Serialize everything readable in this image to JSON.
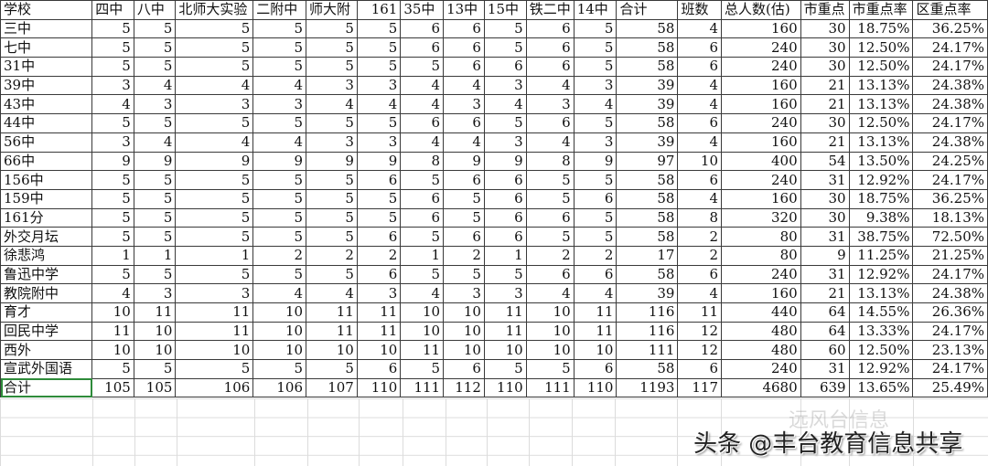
{
  "headers": [
    "学校",
    "四中",
    "八中",
    "北师大实验",
    "二附中",
    "师大附",
    "161",
    "35中",
    "13中",
    "15中",
    "铁二中",
    "14中",
    "合计",
    "班数",
    "总人数(估)",
    "市重点",
    "市重点率",
    "区重点率"
  ],
  "rows": [
    [
      "三中",
      "5",
      "5",
      "5",
      "5",
      "5",
      "5",
      "6",
      "6",
      "5",
      "6",
      "5",
      "58",
      "4",
      "160",
      "30",
      "18.75%",
      "36.25%"
    ],
    [
      "七中",
      "5",
      "5",
      "5",
      "5",
      "5",
      "5",
      "6",
      "6",
      "5",
      "6",
      "5",
      "58",
      "6",
      "240",
      "30",
      "12.50%",
      "24.17%"
    ],
    [
      "31中",
      "5",
      "5",
      "5",
      "5",
      "5",
      "5",
      "5",
      "6",
      "6",
      "6",
      "5",
      "58",
      "6",
      "240",
      "30",
      "12.50%",
      "24.17%"
    ],
    [
      "39中",
      "3",
      "4",
      "4",
      "4",
      "3",
      "3",
      "4",
      "4",
      "3",
      "4",
      "3",
      "39",
      "4",
      "160",
      "21",
      "13.13%",
      "24.38%"
    ],
    [
      "43中",
      "4",
      "3",
      "3",
      "3",
      "4",
      "4",
      "4",
      "3",
      "4",
      "3",
      "4",
      "39",
      "4",
      "160",
      "21",
      "13.13%",
      "24.38%"
    ],
    [
      "44中",
      "5",
      "5",
      "5",
      "5",
      "5",
      "5",
      "6",
      "6",
      "5",
      "6",
      "5",
      "58",
      "6",
      "240",
      "30",
      "12.50%",
      "24.17%"
    ],
    [
      "56中",
      "3",
      "4",
      "4",
      "4",
      "3",
      "3",
      "4",
      "4",
      "3",
      "4",
      "3",
      "39",
      "4",
      "160",
      "21",
      "13.13%",
      "24.38%"
    ],
    [
      "66中",
      "9",
      "9",
      "9",
      "9",
      "9",
      "9",
      "8",
      "9",
      "9",
      "8",
      "9",
      "97",
      "10",
      "400",
      "54",
      "13.50%",
      "24.25%"
    ],
    [
      "156中",
      "5",
      "5",
      "5",
      "5",
      "5",
      "6",
      "5",
      "6",
      "6",
      "5",
      "5",
      "58",
      "6",
      "240",
      "31",
      "12.92%",
      "24.17%"
    ],
    [
      "159中",
      "5",
      "5",
      "5",
      "5",
      "5",
      "5",
      "6",
      "5",
      "6",
      "5",
      "6",
      "58",
      "4",
      "160",
      "30",
      "18.75%",
      "36.25%"
    ],
    [
      "161分",
      "5",
      "5",
      "5",
      "5",
      "5",
      "5",
      "6",
      "5",
      "6",
      "6",
      "5",
      "58",
      "8",
      "320",
      "30",
      "9.38%",
      "18.13%"
    ],
    [
      "外交月坛",
      "5",
      "5",
      "5",
      "5",
      "5",
      "6",
      "5",
      "6",
      "6",
      "5",
      "5",
      "58",
      "2",
      "80",
      "31",
      "38.75%",
      "72.50%"
    ],
    [
      "徐悲鸿",
      "1",
      "1",
      "1",
      "2",
      "2",
      "2",
      "1",
      "2",
      "1",
      "2",
      "2",
      "17",
      "2",
      "80",
      "9",
      "11.25%",
      "21.25%"
    ],
    [
      "鲁迅中学",
      "5",
      "5",
      "5",
      "5",
      "5",
      "6",
      "5",
      "5",
      "5",
      "6",
      "6",
      "58",
      "6",
      "240",
      "31",
      "12.92%",
      "24.17%"
    ],
    [
      "教院附中",
      "4",
      "3",
      "3",
      "4",
      "4",
      "3",
      "4",
      "3",
      "3",
      "4",
      "4",
      "39",
      "4",
      "160",
      "21",
      "13.13%",
      "24.38%"
    ],
    [
      "育才",
      "10",
      "11",
      "11",
      "10",
      "11",
      "11",
      "10",
      "10",
      "11",
      "10",
      "11",
      "116",
      "11",
      "440",
      "64",
      "14.55%",
      "26.36%"
    ],
    [
      "回民中学",
      "11",
      "10",
      "11",
      "10",
      "11",
      "11",
      "10",
      "10",
      "11",
      "10",
      "11",
      "116",
      "12",
      "480",
      "64",
      "13.33%",
      "24.17%"
    ],
    [
      "西外",
      "10",
      "10",
      "10",
      "10",
      "10",
      "10",
      "11",
      "10",
      "10",
      "10",
      "10",
      "111",
      "12",
      "480",
      "60",
      "12.50%",
      "23.13%"
    ],
    [
      "宣武外国语",
      "5",
      "5",
      "5",
      "5",
      "5",
      "6",
      "5",
      "6",
      "5",
      "5",
      "6",
      "58",
      "6",
      "240",
      "31",
      "12.92%",
      "24.17%"
    ],
    [
      "合计",
      "105",
      "105",
      "106",
      "106",
      "107",
      "110",
      "111",
      "112",
      "110",
      "111",
      "110",
      "1193",
      "117",
      "4680",
      "639",
      "13.65%",
      "25.49%"
    ]
  ],
  "watermark": {
    "faint": "远风台信息",
    "main": "头条 @丰台教育信息共享"
  },
  "colors": {
    "selection": "#2e8b3a",
    "grid": "#dcdcdc"
  }
}
